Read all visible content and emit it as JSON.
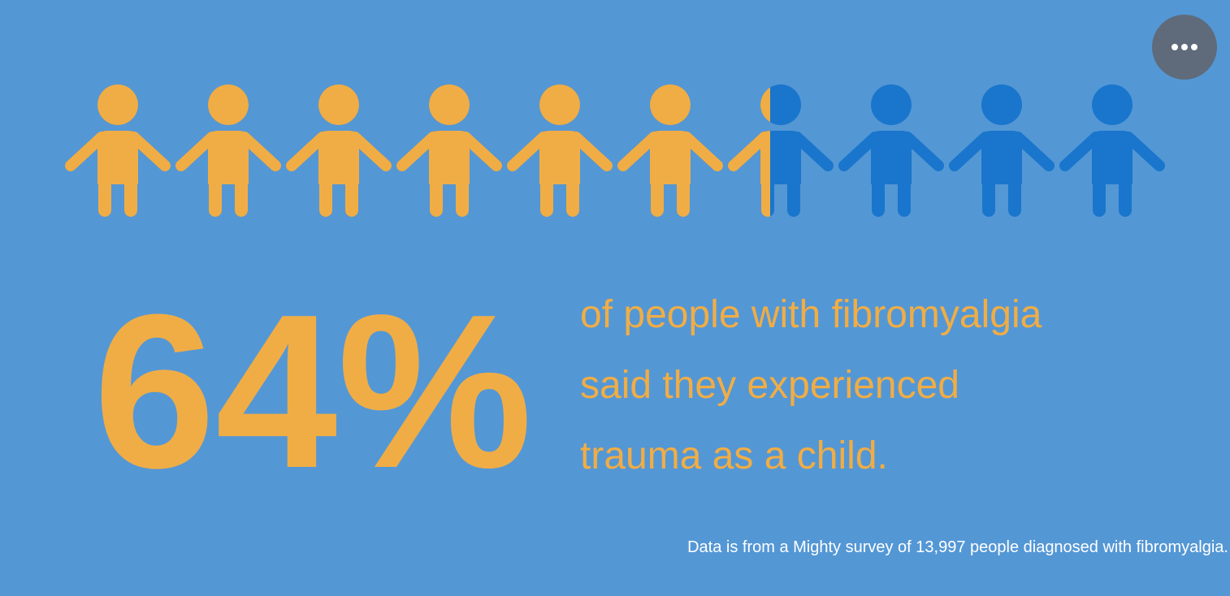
{
  "chart_data": {
    "type": "pictograph",
    "value": 64,
    "value_label": "64%",
    "max": 100,
    "icon_count": 10,
    "fill_color": "#f0ad45",
    "empty_color": "#1976cc",
    "description_lines": [
      "of people with fibromyalgia",
      "said they experienced",
      "trauma as a child."
    ],
    "source": "Data is from a Mighty survey of 13,997 people diagnosed with fibromyalgia."
  }
}
